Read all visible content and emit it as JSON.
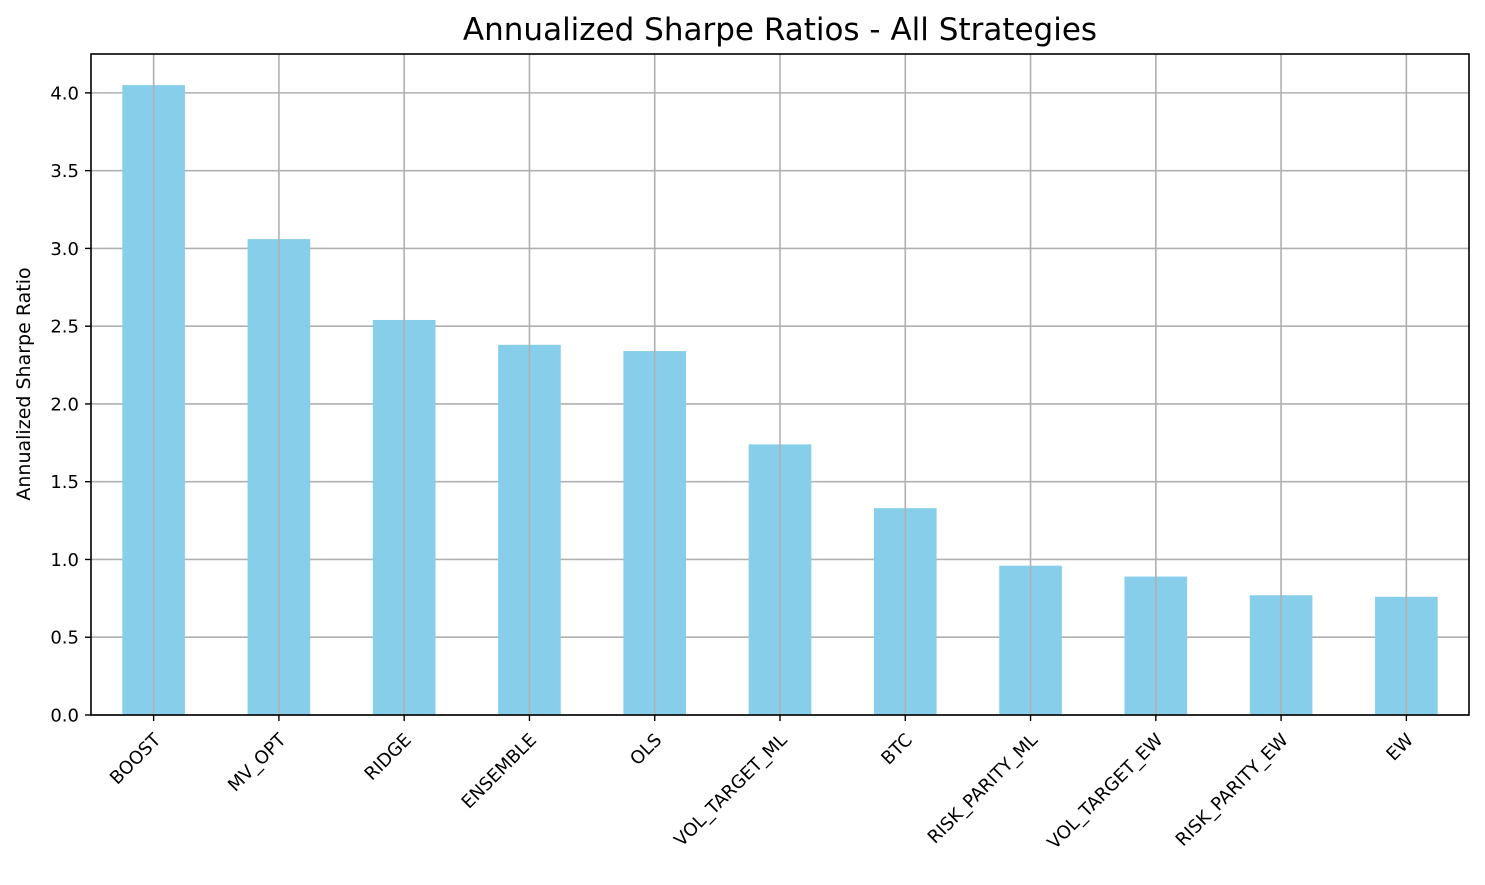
{
  "colors": {
    "bar": "#87ceeb",
    "grid": "#b0b0b0",
    "axis": "#000000",
    "background": "#ffffff"
  },
  "chart_data": {
    "type": "bar",
    "title": "Annualized Sharpe Ratios - All Strategies",
    "xlabel": "",
    "ylabel": "Annualized Sharpe Ratio",
    "categories": [
      "BOOST",
      "MV_OPT",
      "RIDGE",
      "ENSEMBLE",
      "OLS",
      "VOL_TARGET_ML",
      "BTC",
      "RISK_PARITY_ML",
      "VOL_TARGET_EW",
      "RISK_PARITY_EW",
      "EW"
    ],
    "values": [
      4.05,
      3.06,
      2.54,
      2.38,
      2.34,
      1.74,
      1.33,
      0.96,
      0.89,
      0.77,
      0.76
    ],
    "ylim": [
      0,
      4.25
    ],
    "yticks": [
      "0.0",
      "0.5",
      "1.0",
      "1.5",
      "2.0",
      "2.5",
      "3.0",
      "3.5",
      "4.0"
    ],
    "grid": true,
    "legend": false,
    "xtick_rotation": "45 degrees"
  }
}
